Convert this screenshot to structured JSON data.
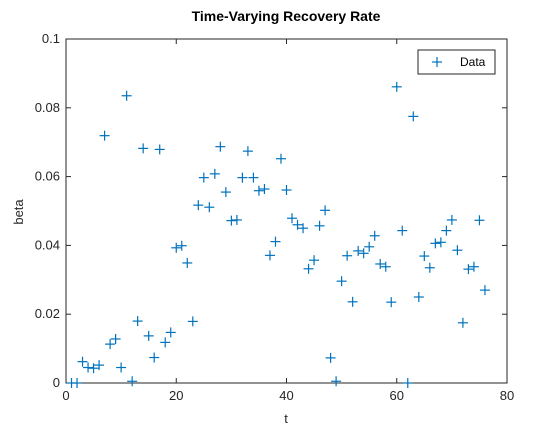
{
  "chart_data": {
    "type": "scatter",
    "title": "Time-Varying Recovery Rate",
    "xlabel": "t",
    "ylabel": "beta",
    "xlim": [
      0,
      80
    ],
    "ylim": [
      0,
      0.1
    ],
    "x_ticks": [
      0,
      20,
      40,
      60,
      80
    ],
    "y_ticks": [
      0,
      0.02,
      0.04,
      0.06,
      0.08,
      0.1
    ],
    "x_tick_labels": [
      "0",
      "20",
      "40",
      "60",
      "80"
    ],
    "y_tick_labels": [
      "0",
      "0.02",
      "0.04",
      "0.06",
      "0.08",
      "0.1"
    ],
    "grid": false,
    "legend": {
      "position": "top-right",
      "entries": [
        "Data"
      ]
    },
    "marker": "plus",
    "color": "#0072BD",
    "series": [
      {
        "name": "Data",
        "points": [
          [
            1,
            0.0
          ],
          [
            2,
            0.0
          ],
          [
            3,
            0.0062
          ],
          [
            4,
            0.0045
          ],
          [
            5,
            0.0043
          ],
          [
            6,
            0.0052
          ],
          [
            7,
            0.0719
          ],
          [
            8,
            0.0113
          ],
          [
            9,
            0.0128
          ],
          [
            10,
            0.0045
          ],
          [
            11,
            0.0835
          ],
          [
            12,
            0.0005
          ],
          [
            13,
            0.018
          ],
          [
            14,
            0.0682
          ],
          [
            15,
            0.0137
          ],
          [
            16,
            0.0074
          ],
          [
            17,
            0.0679
          ],
          [
            18,
            0.0118
          ],
          [
            19,
            0.0147
          ],
          [
            20,
            0.0393
          ],
          [
            21,
            0.0399
          ],
          [
            22,
            0.0349
          ],
          [
            23,
            0.0179
          ],
          [
            24,
            0.0517
          ],
          [
            25,
            0.0597
          ],
          [
            26,
            0.0511
          ],
          [
            27,
            0.0608
          ],
          [
            28,
            0.0687
          ],
          [
            29,
            0.0555
          ],
          [
            30,
            0.0472
          ],
          [
            31,
            0.0474
          ],
          [
            32,
            0.0597
          ],
          [
            33,
            0.0674
          ],
          [
            34,
            0.0597
          ],
          [
            35,
            0.0559
          ],
          [
            36,
            0.0564
          ],
          [
            37,
            0.0371
          ],
          [
            38,
            0.0411
          ],
          [
            39,
            0.0652
          ],
          [
            40,
            0.0561
          ],
          [
            41,
            0.0479
          ],
          [
            42,
            0.046
          ],
          [
            43,
            0.045
          ],
          [
            44,
            0.0332
          ],
          [
            45,
            0.0357
          ],
          [
            46,
            0.0457
          ],
          [
            47,
            0.0502
          ],
          [
            48,
            0.0073
          ],
          [
            49,
            0.0005
          ],
          [
            50,
            0.0296
          ],
          [
            51,
            0.037
          ],
          [
            52,
            0.0236
          ],
          [
            53,
            0.0384
          ],
          [
            54,
            0.0377
          ],
          [
            55,
            0.0396
          ],
          [
            56,
            0.0428
          ],
          [
            57,
            0.0346
          ],
          [
            58,
            0.0338
          ],
          [
            59,
            0.0235
          ],
          [
            60,
            0.0861
          ],
          [
            61,
            0.0443
          ],
          [
            62,
            0.0
          ],
          [
            63,
            0.0775
          ],
          [
            64,
            0.025
          ],
          [
            65,
            0.0369
          ],
          [
            66,
            0.0335
          ],
          [
            67,
            0.0406
          ],
          [
            68,
            0.0409
          ],
          [
            69,
            0.0443
          ],
          [
            70,
            0.0474
          ],
          [
            71,
            0.0386
          ],
          [
            72,
            0.0175
          ],
          [
            73,
            0.0331
          ],
          [
            74,
            0.0338
          ],
          [
            75,
            0.0473
          ],
          [
            76,
            0.027
          ]
        ]
      }
    ]
  }
}
